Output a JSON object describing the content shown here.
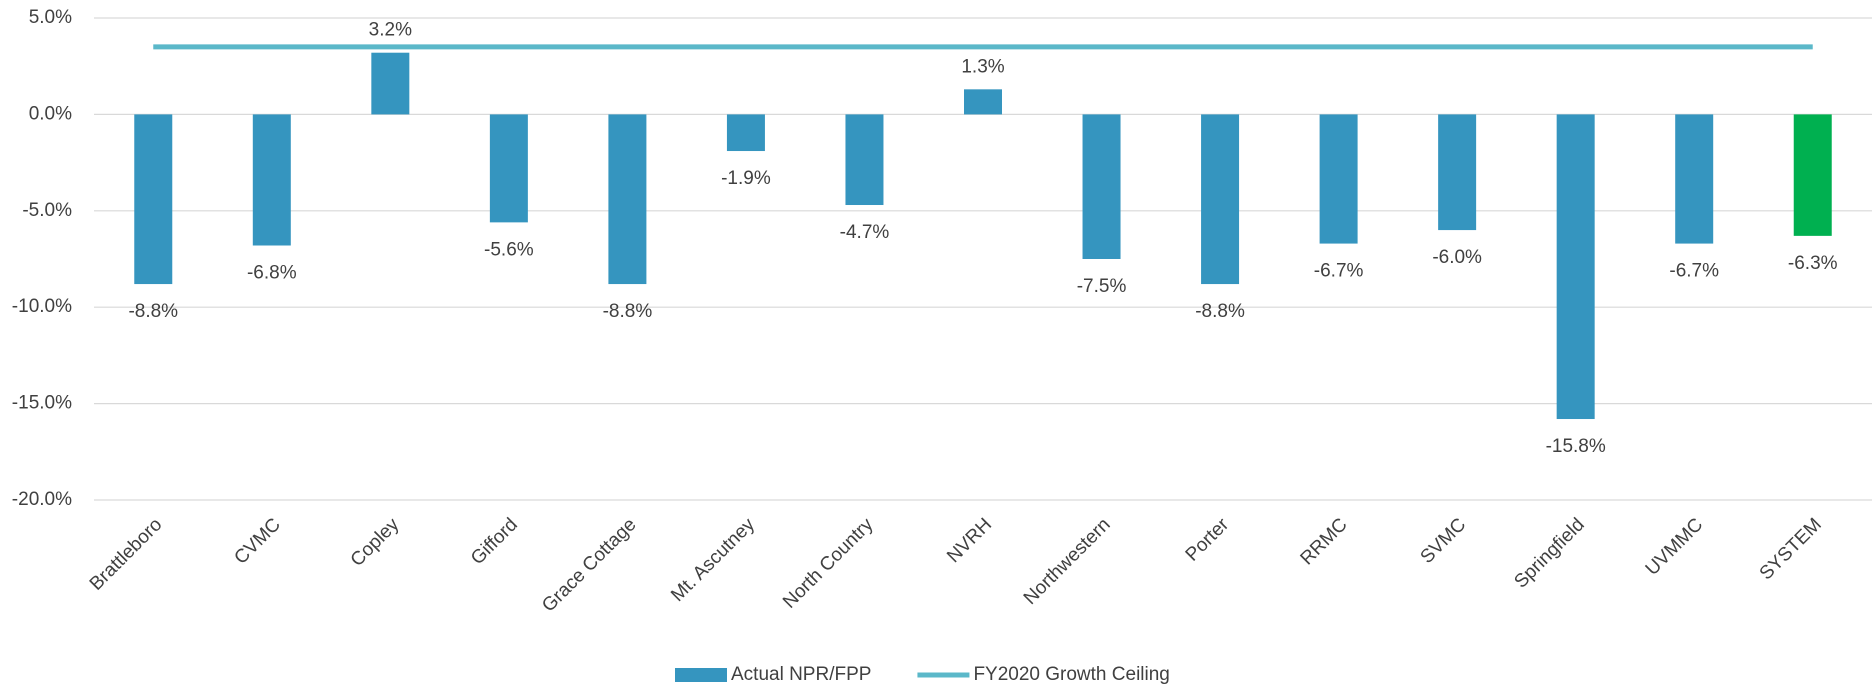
{
  "chart_data": {
    "type": "bar",
    "categories": [
      "Brattleboro",
      "CVMC",
      "Copley",
      "Gifford",
      "Grace Cottage",
      "Mt. Ascutney",
      "North Country",
      "NVRH",
      "Northwestern",
      "Porter",
      "RRMC",
      "SVMC",
      "Springfield",
      "UVMMC",
      "SYSTEM"
    ],
    "series": [
      {
        "name": "Actual NPR/FPP",
        "type": "bar",
        "color": "#3595bf",
        "colors": [
          "#3595bf",
          "#3595bf",
          "#3595bf",
          "#3595bf",
          "#3595bf",
          "#3595bf",
          "#3595bf",
          "#3595bf",
          "#3595bf",
          "#3595bf",
          "#3595bf",
          "#3595bf",
          "#3595bf",
          "#3595bf",
          "#00b050"
        ],
        "values": [
          -8.8,
          -6.8,
          3.2,
          -5.6,
          -8.8,
          -1.9,
          -4.7,
          1.3,
          -7.5,
          -8.8,
          -6.7,
          -6.0,
          -15.8,
          -6.7,
          -6.3
        ],
        "value_labels": [
          "-8.8%",
          "-6.8%",
          "3.2%",
          "-5.6%",
          "-8.8%",
          "-1.9%",
          "-4.7%",
          "1.3%",
          "-7.5%",
          "-8.8%",
          "-6.7%",
          "-6.0%",
          "-15.8%",
          "-6.7%",
          "-6.3%"
        ]
      },
      {
        "name": "FY2020 Growth Ceiling",
        "type": "line",
        "color": "#5bb8c9",
        "values": [
          3.5,
          3.5,
          3.5,
          3.5,
          3.5,
          3.5,
          3.5,
          3.5,
          3.5,
          3.5,
          3.5,
          3.5,
          3.5,
          3.5,
          3.5
        ]
      }
    ],
    "ylim": [
      -20,
      5
    ],
    "yticks": [
      {
        "value": -20,
        "label": "-20.0%"
      },
      {
        "value": -15,
        "label": "-15.0%"
      },
      {
        "value": -10,
        "label": "-10.0%"
      },
      {
        "value": -5,
        "label": "-5.0%"
      },
      {
        "value": 0,
        "label": "0.0%"
      },
      {
        "value": 5,
        "label": "5.0%"
      }
    ],
    "grid": true,
    "legend": "bottom"
  }
}
